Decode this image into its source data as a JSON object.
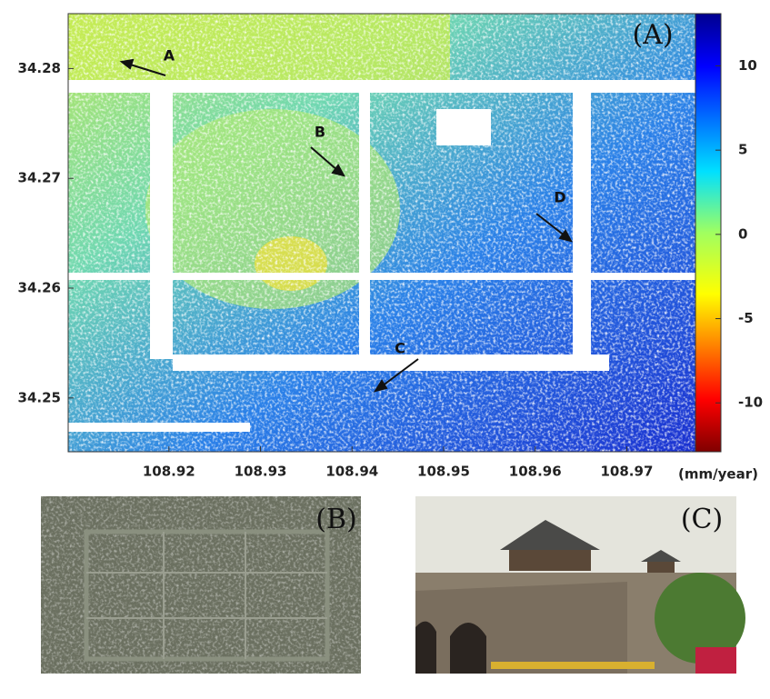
{
  "panel_a": {
    "label": "(A)",
    "xlim": [
      108.909,
      108.9775
    ],
    "ylim": [
      34.2451,
      34.285
    ],
    "xticks": [
      108.92,
      108.93,
      108.94,
      108.95,
      108.96,
      108.97
    ],
    "yticks": [
      34.25,
      34.26,
      34.27,
      34.28
    ],
    "colorbar": {
      "lim": [
        -12.9,
        13.1
      ],
      "ticks": [
        10,
        5,
        0,
        -5,
        -10
      ],
      "unit": "(mm/year)"
    },
    "annotations": [
      "A",
      "B",
      "C",
      "D"
    ]
  },
  "panel_b": {
    "label": "(B)"
  },
  "panel_c": {
    "label": "(C)"
  }
}
